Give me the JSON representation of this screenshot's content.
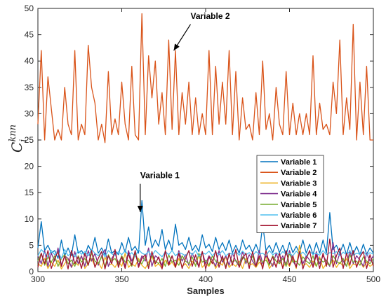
{
  "chart_data": {
    "type": "line",
    "xlabel": "Samples",
    "ylabel": {
      "main": "C",
      "sub": "i",
      "sup": "knn"
    },
    "xlim": [
      300,
      500
    ],
    "ylim": [
      0,
      50
    ],
    "xticks": [
      "300",
      "350",
      "400",
      "450",
      "500"
    ],
    "yticks": [
      "0",
      "5",
      "10",
      "15",
      "20",
      "25",
      "30",
      "35",
      "40",
      "45",
      "50"
    ],
    "legend_position": "center-right",
    "grid": false,
    "x": [
      300,
      302,
      304,
      306,
      308,
      310,
      312,
      314,
      316,
      318,
      320,
      322,
      324,
      326,
      328,
      330,
      332,
      334,
      336,
      338,
      340,
      342,
      344,
      346,
      348,
      350,
      352,
      354,
      356,
      358,
      360,
      362,
      364,
      366,
      368,
      370,
      372,
      374,
      376,
      378,
      380,
      382,
      384,
      386,
      388,
      390,
      392,
      394,
      396,
      398,
      400,
      402,
      404,
      406,
      408,
      410,
      412,
      414,
      416,
      418,
      420,
      422,
      424,
      426,
      428,
      430,
      432,
      434,
      436,
      438,
      440,
      442,
      444,
      446,
      448,
      450,
      452,
      454,
      456,
      458,
      460,
      462,
      464,
      466,
      468,
      470,
      472,
      474,
      476,
      478,
      480,
      482,
      484,
      486,
      488,
      490,
      492,
      494,
      496,
      498,
      500
    ],
    "series": [
      {
        "name": "Variable 1",
        "color": "#0072BD",
        "values": [
          4.5,
          9.5,
          4,
          5,
          3.5,
          4,
          2.5,
          6,
          3,
          4.5,
          3,
          7,
          3.5,
          4,
          3,
          5,
          3.8,
          6.5,
          3.5,
          4.5,
          3.2,
          6.2,
          3.5,
          4,
          3.2,
          5.5,
          3.7,
          6.5,
          4,
          4.8,
          3.5,
          13.5,
          5,
          8.5,
          4.5,
          6,
          4.8,
          8,
          4.2,
          6,
          4,
          9,
          5,
          5.5,
          4.2,
          6.5,
          4,
          5,
          3.8,
          7,
          4.5,
          5.2,
          3.8,
          6.5,
          4.2,
          5.5,
          4,
          6,
          3.6,
          5,
          3.5,
          6,
          4.2,
          5,
          3.6,
          5.2,
          3.5,
          9,
          4,
          5,
          3.6,
          5.5,
          3.6,
          5,
          3.2,
          5.5,
          3.6,
          4.8,
          3.5,
          6,
          3.5,
          5.2,
          3.2,
          5.5,
          3.5,
          6,
          3.5,
          11.2,
          4.2,
          5,
          3.5,
          5.2,
          3.2,
          5.5,
          3.3,
          4.8,
          3.2,
          5.2,
          3.3,
          4.5,
          3.5
        ]
      },
      {
        "name": "Variable 2",
        "color": "#D95319",
        "values": [
          28,
          42,
          25,
          37,
          31,
          25,
          27,
          25,
          35,
          28,
          26,
          42,
          25,
          28,
          26,
          43,
          35,
          32,
          25,
          28,
          24.5,
          38,
          26,
          29,
          26,
          36,
          28,
          25,
          39,
          26,
          25,
          49,
          26,
          41,
          33,
          40,
          28,
          34,
          26,
          44,
          27,
          42,
          26,
          34,
          28,
          36,
          26,
          33,
          26,
          30,
          26,
          42,
          26,
          39,
          28,
          36,
          28,
          42,
          26,
          38,
          25,
          33,
          27,
          28,
          25,
          34,
          26,
          40,
          27,
          30,
          25,
          35,
          28,
          26,
          38,
          26,
          32,
          26,
          30,
          26,
          30,
          26,
          41,
          26,
          32,
          27,
          28,
          26,
          36,
          30,
          44,
          26,
          33,
          27,
          47,
          25,
          36,
          26,
          39,
          25,
          25
        ]
      },
      {
        "name": "Variable 3",
        "color": "#EDB120",
        "values": [
          1.5,
          1,
          2.5,
          0.6,
          1.8,
          1,
          2.2,
          0.5,
          1.5,
          2.5,
          0.8,
          1.8,
          1.2,
          3,
          0.6,
          1.5,
          2.5,
          1,
          1.8,
          0.6,
          2.8,
          1.2,
          1.5,
          0.8,
          2,
          1,
          3.5,
          0.8,
          1.5,
          1,
          2.5,
          1.2,
          0.6,
          1.8,
          3,
          1,
          1.5,
          0.6,
          2.2,
          1.2,
          1.8,
          0.8,
          2.5,
          1,
          1.5,
          0.6,
          2,
          1.2,
          3.2,
          0.8,
          1.5,
          1,
          2.2,
          0.6,
          1.8,
          1.2,
          2.8,
          0.8,
          1.5,
          1,
          2,
          0.6,
          2.5,
          1.2,
          1.5,
          0.8,
          1.8,
          1,
          3,
          0.6,
          1.5,
          1.2,
          2.2,
          0.8,
          1.8,
          1,
          2.5,
          0.6,
          5,
          1.2,
          1.5,
          0.8,
          2,
          1,
          2.8,
          0.6,
          1.5,
          1.2,
          2.2,
          0.8,
          1.8,
          1,
          2.5,
          0.6,
          1.5,
          1.2,
          2,
          0.8,
          1.8,
          1,
          1.5
        ]
      },
      {
        "name": "Variable 4",
        "color": "#7E2F8E",
        "values": [
          3,
          1.5,
          4,
          1,
          3.5,
          2,
          4.5,
          1.2,
          3,
          2.5,
          0.8,
          3.8,
          1.5,
          3,
          1,
          4,
          2,
          3.5,
          1.2,
          3,
          4.2,
          1,
          2.5,
          3.5,
          1.5,
          3,
          1,
          4,
          2,
          3.5,
          1.2,
          3,
          2,
          4.5,
          1,
          3,
          2.5,
          1.2,
          3.8,
          1.5,
          3,
          1,
          4,
          2,
          3.2,
          1.2,
          3.5,
          2,
          1,
          3.8,
          1.5,
          3,
          2.2,
          1,
          4,
          1.8,
          3,
          1.2,
          3.5,
          2,
          1,
          3.8,
          1.5,
          3.2,
          2,
          1,
          4,
          1.5,
          3,
          2.2,
          1,
          3.5,
          1.8,
          3,
          1.2,
          4,
          2,
          1,
          3.5,
          1.5,
          3,
          2.2,
          1,
          3.8,
          1.5,
          3,
          2,
          1,
          5.5,
          1.5,
          3.5,
          2,
          1,
          4,
          1.5,
          3,
          2.2,
          1,
          3.5,
          2,
          3
        ]
      },
      {
        "name": "Variable 5",
        "color": "#77AC30",
        "values": [
          2,
          3.5,
          1.2,
          2.8,
          1.8,
          3,
          1,
          2.5,
          3.2,
          1.5,
          2.2,
          1,
          3,
          1.8,
          2.5,
          1.2,
          3.5,
          2,
          1.5,
          2.8,
          1,
          3.2,
          2,
          2.5,
          1.2,
          3,
          1.8,
          2.2,
          1,
          3.5,
          2,
          1.5,
          2.8,
          1.2,
          3,
          2,
          1.5,
          2.5,
          1,
          3.2,
          1.8,
          2.2,
          1.2,
          3,
          2,
          1.5,
          2.8,
          1,
          3.5,
          1.8,
          2.2,
          1.2,
          3,
          2,
          1.5,
          2.5,
          1,
          3.2,
          1.8,
          2.2,
          1.2,
          2.8,
          2,
          1.5,
          3,
          1,
          2.5,
          1.8,
          2.2,
          1.2,
          3,
          2,
          1.5,
          2.5,
          1,
          3.5,
          1.8,
          2,
          1.2,
          2.8,
          2,
          1.5,
          3,
          1,
          2.5,
          1.8,
          2.2,
          1.2,
          3,
          2,
          1.5,
          2.5,
          1,
          3.2,
          1.8,
          2,
          1.2,
          2.8,
          2,
          1.5,
          2.5
        ]
      },
      {
        "name": "Variable 6",
        "color": "#4DBEEE",
        "values": [
          3,
          4.2,
          3.5,
          2.8,
          4,
          3.2,
          3.8,
          2.5,
          4.2,
          3,
          3.6,
          2.8,
          4,
          3.3,
          3.8,
          3,
          4.2,
          3.5,
          3,
          3.8,
          2.8,
          4,
          3.4,
          3,
          3.8,
          3.2,
          4,
          3,
          3.6,
          2.8,
          4.2,
          3.5,
          3.2,
          3.8,
          3,
          4,
          3.4,
          2.8,
          3.8,
          3.2,
          4,
          3,
          3.6,
          3.4,
          3,
          3.8,
          3.2,
          4,
          2.9,
          3.6,
          3.3,
          3.9,
          3,
          3.7,
          3.2,
          4,
          3,
          3.5,
          3.3,
          3.8,
          3.1,
          3.9,
          3.2,
          3.6,
          3,
          3.8,
          3.3,
          3.5,
          3,
          4,
          3.2,
          3.6,
          3.1,
          3.8,
          3.3,
          3.5,
          3,
          3.9,
          3.2,
          3.7,
          3,
          3.8,
          3.3,
          3.5,
          3.1,
          4,
          3.2,
          3.6,
          3.4,
          3.8,
          3,
          3.7,
          3.2,
          3.9,
          3.1,
          3.5,
          3.3,
          3.8,
          3.1,
          3.6,
          3.3
        ]
      },
      {
        "name": "Variable 7",
        "color": "#A2142F",
        "values": [
          0.8,
          3.5,
          1.5,
          4,
          0.6,
          2.5,
          3.8,
          1,
          3,
          0.5,
          4,
          1.5,
          2.8,
          0.6,
          3.5,
          1.2,
          4,
          0.8,
          2.5,
          3.8,
          0.5,
          3,
          1.5,
          4.2,
          0.8,
          2.8,
          0.6,
          3.5,
          1.2,
          4,
          0.8,
          2.5,
          3.2,
          0.6,
          3.8,
          1.5,
          2.8,
          0.5,
          4,
          1.2,
          3,
          0.8,
          3.5,
          0.6,
          2.5,
          4,
          1,
          3.2,
          0.8,
          3.8,
          0.5,
          2.8,
          1.5,
          4,
          0.8,
          3,
          0.6,
          3.5,
          1.2,
          4.2,
          0.8,
          2.5,
          3.5,
          0.6,
          3.8,
          1,
          3,
          0.5,
          4,
          1.5,
          2.8,
          0.8,
          3.5,
          0.6,
          4,
          1.2,
          3,
          0.8,
          3.8,
          0.5,
          2.5,
          4,
          0.8,
          3.2,
          0.6,
          3.5,
          1,
          6.2,
          0.8,
          3,
          4.5,
          0.6,
          3.5,
          1.2,
          4,
          0.8,
          2.8,
          3.8,
          0.6,
          3.2,
          1
        ]
      }
    ],
    "annotations": [
      {
        "text": "Variable 2",
        "x": 381,
        "y": 42,
        "text_x": 391,
        "text_y": 47.5
      },
      {
        "text": "Variable 1",
        "x": 361,
        "y": 11.3,
        "text_x": 361,
        "text_y": 17.2
      }
    ]
  }
}
